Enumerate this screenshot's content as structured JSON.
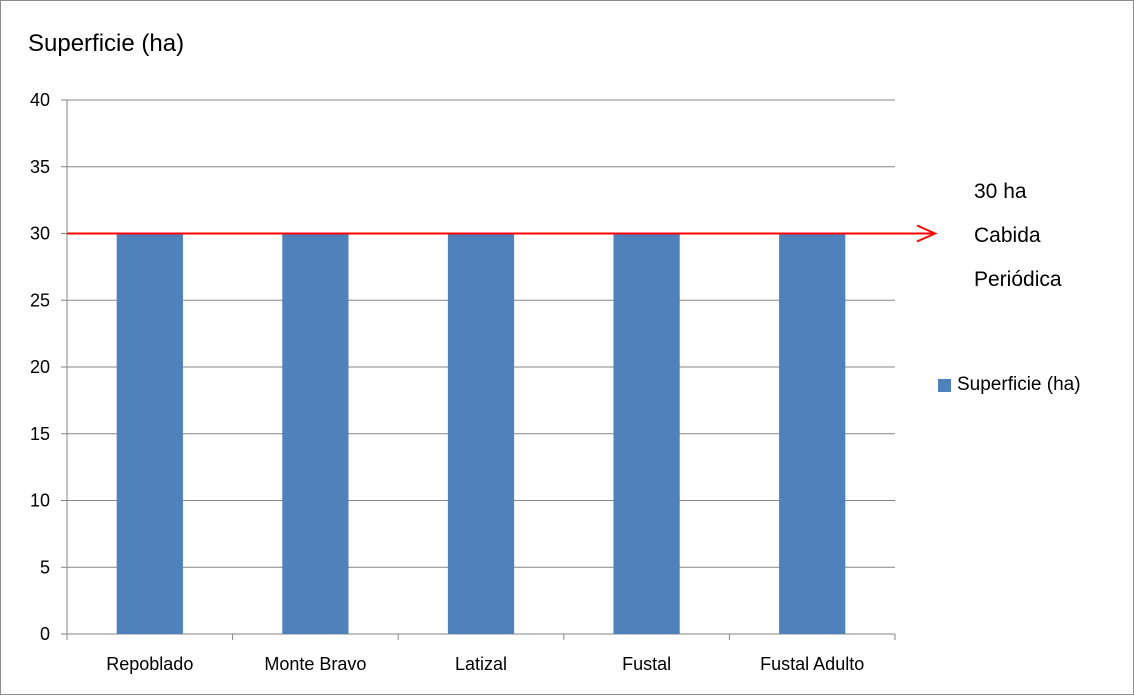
{
  "chart_data": {
    "type": "bar",
    "title": "Superficie (ha)",
    "categories": [
      "Repoblado",
      "Monte Bravo",
      "Latizal",
      "Fustal",
      "Fustal Adulto"
    ],
    "series": [
      {
        "name": "Superficie (ha)",
        "values": [
          30,
          30,
          30,
          30,
          30
        ],
        "color": "#4F81BD"
      }
    ],
    "ylim": [
      0,
      40
    ],
    "yticks": [
      "0",
      "5",
      "10",
      "15",
      "20",
      "25",
      "30",
      "35",
      "40"
    ],
    "xlabel": "",
    "ylabel": "",
    "grid": true,
    "legend": "right",
    "reference_line": {
      "value": 30,
      "color": "#FF0000"
    },
    "annotation": [
      "30 ha",
      "Cabida",
      "Periódica"
    ]
  },
  "colors": {
    "grid": "#868686",
    "axis": "#868686",
    "bar": "#4F81BD",
    "reference": "#FF0000"
  }
}
